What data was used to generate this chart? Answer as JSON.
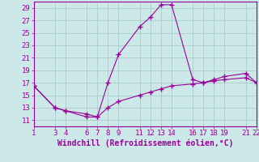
{
  "xlabel": "Windchill (Refroidissement éolien,°C)",
  "line1_x": [
    1,
    3,
    4,
    6,
    7,
    8,
    9,
    11,
    12,
    13,
    14,
    16,
    17,
    18,
    19,
    21,
    22
  ],
  "line1_y": [
    16.5,
    13.0,
    12.5,
    11.5,
    11.5,
    17.0,
    21.5,
    26.0,
    27.5,
    29.5,
    29.5,
    17.5,
    17.0,
    17.5,
    18.0,
    18.5,
    17.0
  ],
  "line2_x": [
    1,
    3,
    4,
    6,
    7,
    8,
    9,
    11,
    12,
    13,
    14,
    16,
    17,
    18,
    19,
    21,
    22
  ],
  "line2_y": [
    16.5,
    13.0,
    12.5,
    12.0,
    11.5,
    13.0,
    14.0,
    15.0,
    15.5,
    16.0,
    16.5,
    16.8,
    17.0,
    17.3,
    17.5,
    17.8,
    17.0
  ],
  "line_color": "#990099",
  "marker": "+",
  "markersize": 4,
  "bg_color": "#cce8e8",
  "grid_color": "#aacccc",
  "xlim": [
    1,
    22
  ],
  "ylim": [
    10,
    30
  ],
  "yticks": [
    11,
    13,
    15,
    17,
    19,
    21,
    23,
    25,
    27,
    29
  ],
  "xticks": [
    1,
    3,
    4,
    6,
    7,
    8,
    9,
    11,
    12,
    13,
    14,
    16,
    17,
    18,
    19,
    21,
    22
  ],
  "tick_fontsize": 6.5,
  "xlabel_fontsize": 7
}
